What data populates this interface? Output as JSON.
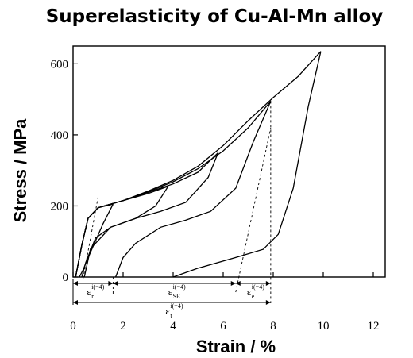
{
  "chart_data": {
    "type": "line",
    "title": "Superelasticity of Cu-Al-Mn alloy",
    "xlabel": "Strain / %",
    "ylabel": "Stress / MPa",
    "xlim": [
      0,
      12
    ],
    "ylim": [
      0,
      650
    ],
    "xticks": [
      "0",
      "2",
      "4",
      "6",
      "8",
      "10",
      "12"
    ],
    "yticks": [
      "0",
      "200",
      "400",
      "600"
    ],
    "grid": false,
    "series": [
      {
        "loading": [
          [
            0.1,
            0
          ],
          [
            0.35,
            90
          ],
          [
            0.6,
            165
          ],
          [
            1.0,
            195
          ],
          [
            1.6,
            205
          ]
        ],
        "unloading": [
          [
            1.6,
            205
          ],
          [
            1.2,
            150
          ],
          [
            0.7,
            70
          ],
          [
            0.4,
            20
          ],
          [
            0.25,
            0
          ]
        ]
      },
      {
        "loading": [
          [
            0.1,
            0
          ],
          [
            0.35,
            90
          ],
          [
            0.6,
            165
          ],
          [
            1.0,
            195
          ],
          [
            2.0,
            215
          ],
          [
            3.0,
            235
          ],
          [
            3.8,
            255
          ]
        ],
        "unloading": [
          [
            3.8,
            255
          ],
          [
            3.3,
            200
          ],
          [
            2.5,
            165
          ],
          [
            1.5,
            140
          ],
          [
            0.9,
            110
          ],
          [
            0.5,
            40
          ],
          [
            0.35,
            0
          ]
        ]
      },
      {
        "loading": [
          [
            0.1,
            0
          ],
          [
            0.35,
            90
          ],
          [
            0.6,
            165
          ],
          [
            1.0,
            195
          ],
          [
            2.0,
            215
          ],
          [
            3.0,
            238
          ],
          [
            4.0,
            262
          ],
          [
            5.0,
            295
          ],
          [
            5.8,
            350
          ]
        ],
        "unloading": [
          [
            5.8,
            350
          ],
          [
            5.4,
            280
          ],
          [
            4.5,
            210
          ],
          [
            3.5,
            185
          ],
          [
            2.5,
            165
          ],
          [
            1.5,
            140
          ],
          [
            0.7,
            80
          ],
          [
            0.45,
            0
          ]
        ]
      },
      {
        "loading": [
          [
            0.1,
            0
          ],
          [
            0.35,
            90
          ],
          [
            0.6,
            165
          ],
          [
            1.0,
            195
          ],
          [
            2.0,
            215
          ],
          [
            3.0,
            240
          ],
          [
            4.0,
            268
          ],
          [
            5.0,
            305
          ],
          [
            6.0,
            355
          ],
          [
            7.0,
            420
          ],
          [
            7.9,
            495
          ]
        ],
        "unloading": [
          [
            7.9,
            495
          ],
          [
            7.2,
            380
          ],
          [
            6.5,
            250
          ],
          [
            5.5,
            185
          ],
          [
            4.5,
            160
          ],
          [
            3.5,
            140
          ],
          [
            2.5,
            95
          ],
          [
            2.0,
            55
          ],
          [
            1.7,
            0
          ]
        ]
      },
      {
        "loading": [
          [
            0.1,
            0
          ],
          [
            0.35,
            90
          ],
          [
            0.6,
            165
          ],
          [
            1.0,
            195
          ],
          [
            2.0,
            215
          ],
          [
            3.0,
            242
          ],
          [
            4.0,
            272
          ],
          [
            5.0,
            312
          ],
          [
            6.0,
            370
          ],
          [
            7.0,
            440
          ],
          [
            8.0,
            505
          ],
          [
            9.0,
            565
          ],
          [
            9.9,
            635
          ]
        ],
        "unloading": [
          [
            9.9,
            635
          ],
          [
            9.4,
            480
          ],
          [
            8.8,
            250
          ],
          [
            8.2,
            120
          ],
          [
            7.6,
            78
          ],
          [
            6.5,
            55
          ],
          [
            5.0,
            25
          ],
          [
            4.0,
            0
          ]
        ]
      }
    ],
    "annotations": {
      "eps_r": {
        "label": "ε",
        "sub": "r",
        "sup": "i(=4)",
        "from": 0,
        "to": 1.6
      },
      "eps_SE": {
        "label": "ε",
        "sub": "SE",
        "sup": "i(=4)",
        "from": 1.6,
        "to": 6.5
      },
      "eps_e": {
        "label": "ε",
        "sub": "e",
        "sup": "i(=4)",
        "from": 6.5,
        "to": 7.9
      },
      "eps_t": {
        "label": "ε",
        "sub": "t",
        "sup": "i(=4)",
        "from": 0,
        "to": 7.9
      }
    }
  }
}
